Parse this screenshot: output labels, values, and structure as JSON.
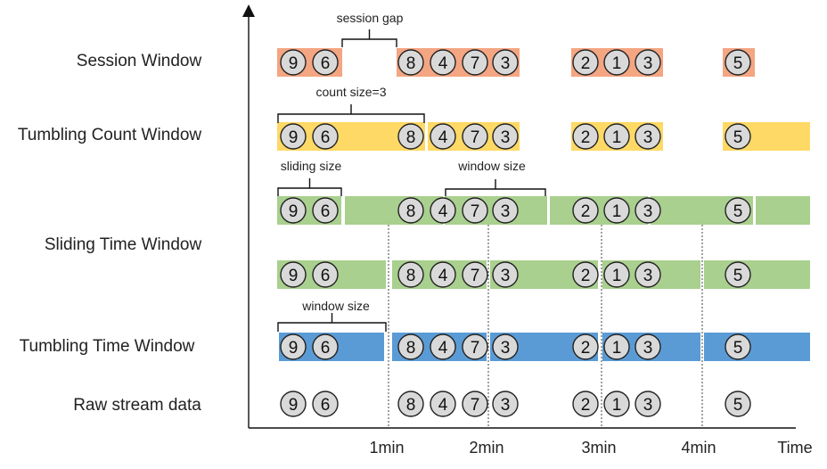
{
  "colors": {
    "session": "#f4a582",
    "count": "#ffd966",
    "sliding": "#a9d08e",
    "tumbling_time": "#5b9bd5"
  },
  "rows": {
    "session": "Session Window",
    "tumbling_count": "Tumbling Count Window",
    "sliding_time": "Sliding Time Window",
    "tumbling_time": "Tumbling Time Window",
    "raw": "Raw stream data"
  },
  "annotations": {
    "session_gap": "session gap",
    "count_size": "count size=3",
    "sliding_size": "sliding size",
    "window_size_sliding": "window size",
    "window_size_tumbling": "window size"
  },
  "axis": {
    "x_label": "Time",
    "ticks": [
      "1min",
      "2min",
      "3min",
      "4min"
    ]
  },
  "events": [
    "9",
    "6",
    "8",
    "4",
    "7",
    "3",
    "2",
    "1",
    "3",
    "5"
  ]
}
